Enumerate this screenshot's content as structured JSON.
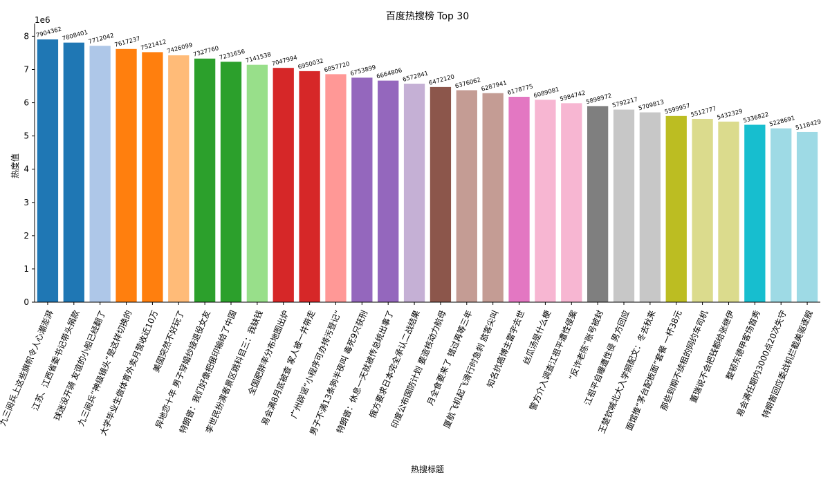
{
  "chart_data": {
    "type": "bar",
    "title": "百度热搜榜 Top 30",
    "xlabel": "热搜标题",
    "ylabel": "热度值",
    "y_multiplier_label": "1e6",
    "ylim": [
      0,
      8300000
    ],
    "y_ticks": [
      0,
      1,
      2,
      3,
      4,
      5,
      6,
      7,
      8
    ],
    "grid": false,
    "categories": [
      "九三阅兵上这些旗帜令人心潮澎湃",
      "江苏、江西省委书记带头捐款",
      "球迷没开骑 友谊的小船已经翻了",
      "九三阅兵“神级镜头”是这样切换的",
      "大学毕业生做体育外卖月营收近10万",
      "美国突然不好玩了",
      "异地恋十年 男子穿婚纱接退役女友",
      "特朗普：我们好像把俄印输给了中国",
      "李世民扮演者景区跳科目三：我缺钱",
      "全国肥胖率分布地图出炉",
      "易会满8月底被查 家人被一井带走",
      "广州辟谣“小程序可办排污登记”",
      "男子不满13条狗半夜叫 毒死9只获刑",
      "特朗普：休息一天就被传总统出事了",
      "俄方要求日本完全承认二战结果",
      "印度公布国防计划 要造核动力航母",
      "月全食要来了 错过再等三年",
      "厦航飞机起飞滑行时急刹 旅客尖叫",
      "知名抗癌博主雷宇去世",
      "丝瓜汤是什么梗",
      "警方介入调查江祖平遭性侵案",
      "“反诈老陈”账号被封",
      "江祖平自曝遭性侵 男方回应",
      "王楚钦喊北大入学照配文：冬去秋来",
      "面馆推“茅台配板面”套餐 一杯38元",
      "那些到期不续租的网约车司机",
      "董瑞说不会把钱都给张继伊",
      "整顿东德甲客场首秀",
      "易会满任期内3000点20次失守",
      "特朗普回应委战机拦截美驱逐舰"
    ],
    "values": [
      7904362,
      7808401,
      7712042,
      7617237,
      7521412,
      7426099,
      7327760,
      7231656,
      7141538,
      7047994,
      6950032,
      6857720,
      6753899,
      6664806,
      6572841,
      6472120,
      6376062,
      6287941,
      6178775,
      6089081,
      5984742,
      5898972,
      5792217,
      5709813,
      5599957,
      5512777,
      5432329,
      5336822,
      5228691,
      5118429
    ],
    "value_labels": [
      "7904362",
      "7808401",
      "7712042",
      "7617237",
      "7521412",
      "7426099",
      "7327760",
      "7231656",
      "7141538",
      "7047994",
      "6950032",
      "6857720",
      "6753899",
      "6664806",
      "6572841",
      "6472120",
      "6376062",
      "6287941",
      "6178775",
      "6089081",
      "5984742",
      "5898972",
      "5792217",
      "5709813",
      "5599957",
      "5512777",
      "5432329",
      "5336822",
      "5228691",
      "5118429"
    ],
    "colors": [
      "#1f77b4",
      "#1f77b4",
      "#aec7e8",
      "#ff7f0e",
      "#ff7f0e",
      "#ffbb78",
      "#2ca02c",
      "#2ca02c",
      "#98df8a",
      "#d62728",
      "#d62728",
      "#ff9896",
      "#9467bd",
      "#9467bd",
      "#c5b0d5",
      "#8c564b",
      "#c49c94",
      "#c49c94",
      "#e377c2",
      "#f7b6d2",
      "#f7b6d2",
      "#7f7f7f",
      "#c7c7c7",
      "#c7c7c7",
      "#bcbd22",
      "#dbdb8d",
      "#dbdb8d",
      "#17becf",
      "#9edae5",
      "#9edae5"
    ]
  }
}
